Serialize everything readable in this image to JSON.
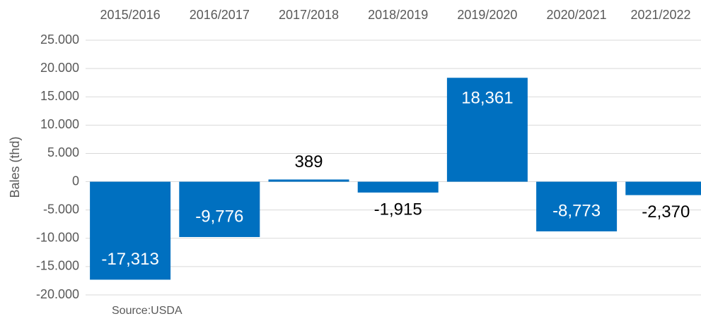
{
  "chart_data": {
    "type": "bar",
    "categories": [
      "2015/2016",
      "2016/2017",
      "2017/2018",
      "2018/2019",
      "2019/2020",
      "2020/2021",
      "2021/2022"
    ],
    "values": [
      -17313,
      -9776,
      389,
      -1915,
      18361,
      -8773,
      -2370
    ],
    "value_labels": [
      "-17,313",
      "-9,776",
      "389",
      "-1,915",
      "18,361",
      "-8,773",
      "-2,370"
    ],
    "color": "#0070c0",
    "y_label": "Bales (thd)",
    "source": "Source:USDA",
    "ylim": [
      -20000,
      25000
    ],
    "yticks": [
      {
        "value": -20000,
        "label": "-20.000"
      },
      {
        "value": -15000,
        "label": "-15.000"
      },
      {
        "value": -10000,
        "label": "-10.000"
      },
      {
        "value": -5000,
        "label": "-5.000"
      },
      0,
      {
        "value": 5000,
        "label": "5.000"
      },
      {
        "value": 10000,
        "label": "10.000"
      },
      {
        "value": 15000,
        "label": "15.000"
      },
      {
        "value": 20000,
        "label": "20.000"
      },
      {
        "value": 25000,
        "label": "25.000"
      }
    ],
    "grid": true
  }
}
